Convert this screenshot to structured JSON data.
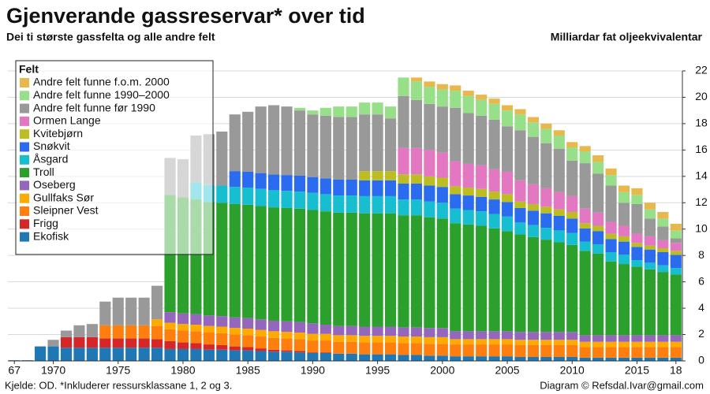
{
  "chart_data": {
    "type": "stacked-bar",
    "title": "Gjenverande gassreservar* over tid",
    "subtitle": "Dei ti største gassfelta og alle andre felt",
    "y_label": "Milliardar fat oljeekvivalentar",
    "legend_title": "Felt",
    "source": "Kjelde: OD. *Inkluderer ressursklassane 1, 2 og 3.",
    "credit": "Diagram © Refsdal.Ivar@gmail.com",
    "legend": "upper left",
    "grid": true,
    "x": [
      1967,
      1968,
      1969,
      1970,
      1971,
      1972,
      1973,
      1974,
      1975,
      1976,
      1977,
      1978,
      1979,
      1980,
      1981,
      1982,
      1983,
      1984,
      1985,
      1986,
      1987,
      1988,
      1989,
      1990,
      1991,
      1992,
      1993,
      1994,
      1995,
      1996,
      1997,
      1998,
      1999,
      2000,
      2001,
      2002,
      2003,
      2004,
      2005,
      2006,
      2007,
      2008,
      2009,
      2010,
      2011,
      2012,
      2013,
      2014,
      2015,
      2016,
      2017,
      2018
    ],
    "xlim": [
      1966.5,
      2018.5
    ],
    "xticks": [
      {
        "value": 1967,
        "label": "67"
      },
      1970,
      1975,
      1980,
      1985,
      1990,
      1995,
      2000,
      2005,
      2010,
      2015,
      {
        "value": 2018,
        "label": "18"
      }
    ],
    "ylim": [
      0,
      22
    ],
    "yticks": [
      0,
      2,
      4,
      6,
      8,
      10,
      12,
      14,
      16,
      18,
      20,
      22
    ],
    "series": [
      {
        "name": "Ekofisk",
        "color": "#1f77b4",
        "values": [
          0.05,
          0.05,
          1.1,
          1.1,
          1,
          1,
          1,
          1,
          1,
          1,
          1,
          1,
          0.9,
          0.9,
          0.9,
          0.85,
          0.85,
          0.8,
          0.8,
          0.75,
          0.7,
          0.7,
          0.65,
          0.6,
          0.6,
          0.55,
          0.55,
          0.5,
          0.5,
          0.5,
          0.45,
          0.45,
          0.4,
          0.4,
          0.35,
          0.35,
          0.35,
          0.35,
          0.35,
          0.3,
          0.3,
          0.3,
          0.3,
          0.3,
          0.25,
          0.25,
          0.25,
          0.25,
          0.25,
          0.25,
          0.25,
          0.25
        ]
      },
      {
        "name": "Frigg",
        "color": "#d62728",
        "values": [
          0,
          0,
          0,
          0,
          0.8,
          0.8,
          0.8,
          0.7,
          0.7,
          0.7,
          0.7,
          0.65,
          0.6,
          0.5,
          0.45,
          0.4,
          0.35,
          0.3,
          0.25,
          0.2,
          0.15,
          0.1,
          0.1,
          0.05,
          0.05,
          0,
          0,
          0,
          0,
          0,
          0,
          0,
          0,
          0,
          0,
          0,
          0,
          0,
          0,
          0,
          0,
          0,
          0,
          0,
          0,
          0,
          0,
          0,
          0,
          0,
          0,
          0
        ]
      },
      {
        "name": "Sleipner Vest",
        "color": "#ff7f0e",
        "values": [
          0,
          0,
          0,
          0,
          0,
          0,
          0,
          1,
          1,
          1,
          1,
          1,
          0.9,
          0.9,
          0.9,
          0.9,
          0.9,
          0.9,
          0.9,
          0.9,
          0.9,
          0.9,
          0.9,
          0.9,
          0.9,
          0.9,
          0.9,
          0.9,
          0.9,
          0.9,
          0.9,
          0.9,
          0.9,
          0.9,
          0.9,
          0.9,
          0.9,
          0.9,
          0.9,
          0.9,
          0.9,
          0.9,
          0.9,
          0.9,
          0.8,
          0.8,
          0.8,
          0.8,
          0.8,
          0.8,
          0.8,
          0.8
        ]
      },
      {
        "name": "Gullfaks Sør",
        "color": "#ffaa00",
        "values": [
          0,
          0,
          0,
          0,
          0,
          0,
          0,
          0,
          0,
          0,
          0,
          0.5,
          0.5,
          0.5,
          0.5,
          0.5,
          0.5,
          0.5,
          0.5,
          0.5,
          0.5,
          0.5,
          0.5,
          0.5,
          0.5,
          0.5,
          0.5,
          0.5,
          0.5,
          0.5,
          0.5,
          0.5,
          0.5,
          0.5,
          0.4,
          0.4,
          0.4,
          0.4,
          0.4,
          0.4,
          0.4,
          0.4,
          0.4,
          0.4,
          0.4,
          0.4,
          0.4,
          0.4,
          0.4,
          0.4,
          0.4,
          0.4
        ]
      },
      {
        "name": "Oseberg",
        "color": "#9467bd",
        "values": [
          0,
          0,
          0,
          0,
          0,
          0,
          0,
          0,
          0,
          0,
          0,
          0,
          0.8,
          0.8,
          0.8,
          0.8,
          0.8,
          0.8,
          0.8,
          0.8,
          0.8,
          0.8,
          0.8,
          0.8,
          0.7,
          0.7,
          0.7,
          0.7,
          0.7,
          0.7,
          0.7,
          0.7,
          0.7,
          0.7,
          0.6,
          0.6,
          0.6,
          0.6,
          0.6,
          0.6,
          0.6,
          0.6,
          0.6,
          0.6,
          0.5,
          0.5,
          0.5,
          0.5,
          0.5,
          0.5,
          0.5,
          0.5
        ]
      },
      {
        "name": "Troll",
        "color": "#2ca02c",
        "values": [
          0,
          0,
          0,
          0,
          0,
          0,
          0,
          0,
          0,
          0,
          0,
          0,
          8.9,
          8.8,
          8.7,
          8.6,
          8.6,
          8.6,
          8.6,
          8.6,
          8.6,
          8.6,
          8.6,
          8.6,
          8.6,
          8.6,
          8.6,
          8.6,
          8.6,
          8.6,
          8.5,
          8.5,
          8.4,
          8.3,
          8.2,
          8.1,
          8.0,
          7.8,
          7.6,
          7.4,
          7.2,
          7.0,
          6.8,
          6.6,
          6.4,
          6.2,
          5.6,
          5.4,
          5.2,
          5.0,
          4.8,
          4.6
        ]
      },
      {
        "name": "Åsgard",
        "color": "#17becf",
        "values": [
          0,
          0,
          0,
          0,
          0,
          0,
          0,
          0,
          0,
          0,
          0,
          0,
          0,
          0,
          1.3,
          1.3,
          1.3,
          1.3,
          1.3,
          1.3,
          1.3,
          1.3,
          1.3,
          1.3,
          1.3,
          1.3,
          1.3,
          1.3,
          1.3,
          1.3,
          1.2,
          1.2,
          1.2,
          1.2,
          1.1,
          1.1,
          1.1,
          1.1,
          1.1,
          0.9,
          0.9,
          0.9,
          0.9,
          0.9,
          0.7,
          0.7,
          0.7,
          0.7,
          0.5,
          0.5,
          0.5,
          0.5
        ]
      },
      {
        "name": "Snøkvit",
        "color": "#2a6bef",
        "values": [
          0,
          0,
          0,
          0,
          0,
          0,
          0,
          0,
          0,
          0,
          0,
          0,
          0,
          0,
          0,
          0,
          0,
          1.2,
          1.2,
          1.2,
          1.2,
          1.2,
          1.2,
          1.2,
          1.2,
          1.2,
          1.2,
          1.2,
          1.2,
          1.2,
          1.2,
          1.2,
          1.2,
          1.2,
          1.1,
          1.1,
          1.1,
          1.1,
          1.1,
          1.1,
          1.1,
          1.1,
          1.1,
          1.1,
          1.0,
          1.0,
          1.0,
          1.0,
          1.0,
          1.0,
          1.0,
          1.0
        ]
      },
      {
        "name": "Kvitebjørn",
        "color": "#bcbd22",
        "values": [
          0,
          0,
          0,
          0,
          0,
          0,
          0,
          0,
          0,
          0,
          0,
          0,
          0,
          0,
          0,
          0,
          0,
          0,
          0,
          0,
          0,
          0,
          0,
          0,
          0,
          0,
          0,
          0.7,
          0.7,
          0.7,
          0.7,
          0.7,
          0.7,
          0.7,
          0.6,
          0.6,
          0.6,
          0.6,
          0.6,
          0.5,
          0.5,
          0.5,
          0.5,
          0.5,
          0.4,
          0.4,
          0.4,
          0.4,
          0.3,
          0.3,
          0.3,
          0.3
        ]
      },
      {
        "name": "Ormen Lange",
        "color": "#e377c2",
        "values": [
          0,
          0,
          0,
          0,
          0,
          0,
          0,
          0,
          0,
          0,
          0,
          0,
          0,
          0,
          0,
          0,
          0,
          0,
          0,
          0,
          0,
          0,
          0,
          0,
          0,
          0,
          0,
          0,
          0,
          0,
          2.0,
          2.0,
          2.0,
          1.9,
          1.9,
          1.8,
          1.8,
          1.7,
          1.7,
          1.6,
          1.5,
          1.4,
          1.3,
          1.2,
          1.1,
          1.0,
          0.9,
          0.8,
          0.7,
          0.7,
          0.6,
          0.6
        ]
      },
      {
        "name": "Andre felt funne før 1990",
        "color": "#999999",
        "values": [
          0,
          0,
          0,
          0.5,
          0.5,
          0.9,
          1.0,
          1.8,
          2.1,
          2.1,
          2.1,
          2.55,
          2.8,
          2.9,
          3.55,
          3.85,
          4.1,
          4.3,
          4.55,
          5.05,
          5.25,
          5.2,
          4.95,
          4.75,
          4.75,
          4.75,
          4.75,
          4.3,
          4.3,
          4.0,
          3.95,
          3.65,
          3.5,
          3.5,
          4.05,
          3.85,
          3.75,
          3.75,
          3.45,
          3.8,
          3.6,
          3.4,
          3.3,
          2.7,
          3.45,
          2.95,
          2.75,
          1.75,
          2.25,
          1.35,
          1.05,
          0.35
        ]
      },
      {
        "name": "Andre felt funne 1990–2000",
        "color": "#98df8a",
        "values": [
          0,
          0,
          0,
          0,
          0,
          0,
          0,
          0,
          0,
          0,
          0,
          0,
          0,
          0,
          0,
          0,
          0,
          0,
          0,
          0,
          0,
          0,
          0.2,
          0.3,
          0.6,
          0.8,
          0.8,
          0.9,
          0.9,
          0.9,
          1.4,
          1.4,
          1.3,
          1.3,
          1.3,
          1.3,
          1.2,
          1.2,
          1.2,
          1.2,
          1.1,
          1.1,
          1.0,
          1.0,
          0.9,
          0.9,
          0.8,
          0.8,
          0.7,
          0.7,
          0.6,
          0.6
        ]
      },
      {
        "name": "Andre felt funne f.o.m. 2000",
        "color": "#e8b84d",
        "values": [
          0,
          0,
          0,
          0,
          0,
          0,
          0,
          0,
          0,
          0,
          0,
          0,
          0,
          0,
          0,
          0,
          0,
          0,
          0,
          0,
          0,
          0,
          0,
          0,
          0,
          0,
          0,
          0,
          0,
          0,
          0,
          0.3,
          0.4,
          0.4,
          0.4,
          0.4,
          0.4,
          0.4,
          0.4,
          0.4,
          0.4,
          0.4,
          0.4,
          0.4,
          0.4,
          0.5,
          0.5,
          0.5,
          0.5,
          0.5,
          0.5,
          0.5
        ]
      }
    ]
  }
}
